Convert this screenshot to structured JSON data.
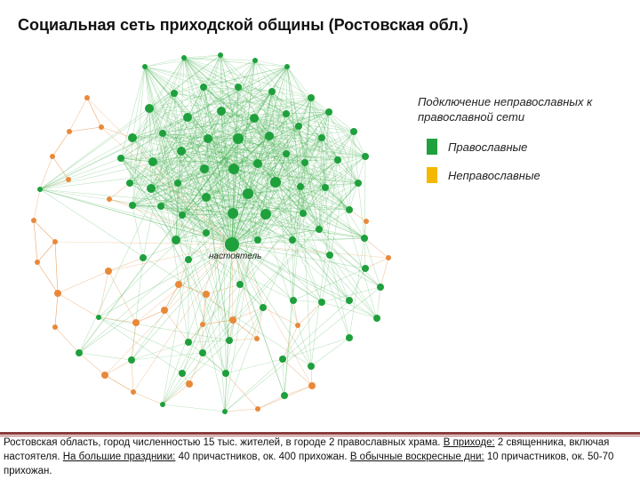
{
  "title": "Социальная сеть приходской общины (Ростовская обл.)",
  "colors": {
    "orthodox": "#1ea03c",
    "non_orthodox": "#e8893a",
    "orthodox_edge": "#3fb04a",
    "non_orthodox_edge": "#e8a060",
    "legend_non_orthodox": "#f5b800"
  },
  "legend": {
    "heading": "Подключение неправославных к православной сети",
    "items": [
      {
        "label": "Православные"
      },
      {
        "label": "Неправославные"
      }
    ]
  },
  "network": {
    "center_label": "настоятель"
  },
  "caption": {
    "part1": "Ростовская область, город численностью 15 тыс. жителей, в городе 2 православных храма. ",
    "u1": "В приходе:",
    "part2": " 2 священника, включая настоятеля. ",
    "u2": "На большие праздники:",
    "part3": " 40 причастников, ок. 400 прихожан. ",
    "u3": "В обычные воскресные дни:",
    "part4": " 10 причастников, ок. 50-70 прихожан."
  }
}
